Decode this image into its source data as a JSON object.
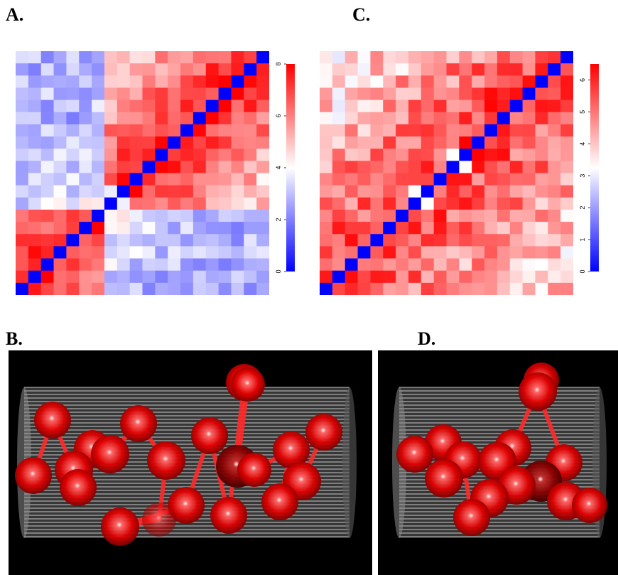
{
  "panels": {
    "A": {
      "label": "A."
    },
    "B": {
      "label": "B."
    },
    "C": {
      "label": "C."
    },
    "D": {
      "label": "D."
    }
  },
  "chart_data": [
    {
      "panel": "A",
      "type": "heatmap",
      "title": "",
      "size": 20,
      "scale_min": 0,
      "scale_max": 8,
      "colorbar_ticks": [
        "0",
        "2",
        "4",
        "6",
        "8"
      ],
      "palette": {
        "low": "#0000ff",
        "mid": "#ffffff",
        "high": "#ff0000"
      },
      "diagonal": "low, running bottom-left to top-right"
    },
    {
      "panel": "C",
      "type": "heatmap",
      "title": "",
      "size": 20,
      "scale_min": 0,
      "scale_max": 6.5,
      "colorbar_ticks": [
        "0",
        "1",
        "2",
        "3",
        "4",
        "5",
        "6"
      ],
      "palette": {
        "low": "#0000ff",
        "mid": "#ffffff",
        "high": "#ff0000"
      },
      "diagonal": "low, running bottom-left to top-right"
    }
  ],
  "structures": [
    {
      "panel": "B",
      "description_colors": {
        "bead": "#e00000",
        "highlight": "#8a0000",
        "cylinder": "#bdbdbd"
      }
    },
    {
      "panel": "D",
      "description_colors": {
        "bead": "#e00000",
        "highlight": "#8a0000",
        "cylinder": "#bdbdbd"
      }
    }
  ]
}
